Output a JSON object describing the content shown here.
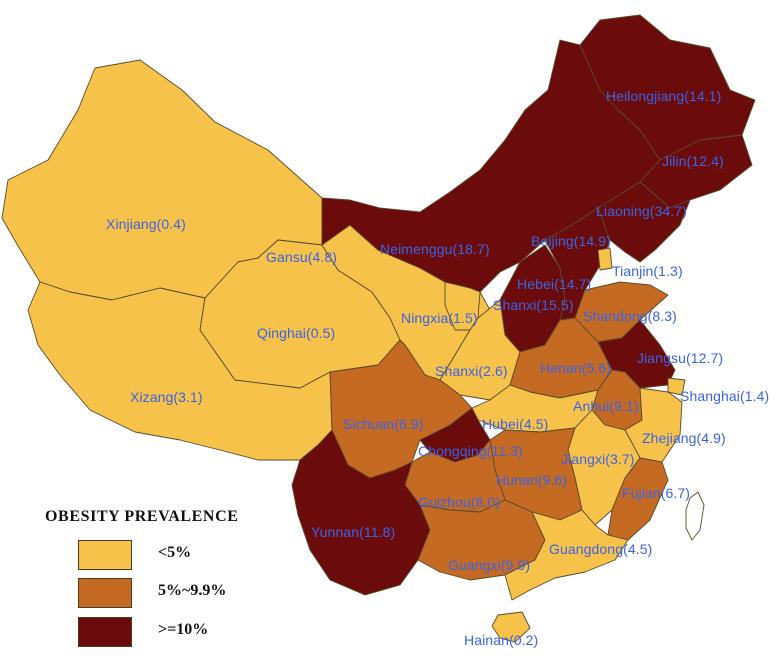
{
  "colors": {
    "low": "#f6c24a",
    "mid": "#c46a22",
    "high": "#6b0b0b",
    "label": "#3b63e6",
    "border": "#5a4a2a"
  },
  "legend": {
    "title": "OBESITY PREVALENCE",
    "items": [
      {
        "label": "<5%",
        "category": "low"
      },
      {
        "label": "5%~9.9%",
        "category": "mid"
      },
      {
        "label": ">=10%",
        "category": "high"
      }
    ]
  },
  "provinces": [
    {
      "id": "heilongjiang",
      "label": "Heilongjiang(14.1)",
      "category": "high"
    },
    {
      "id": "jilin",
      "label": "Jilin(12.4)",
      "category": "high"
    },
    {
      "id": "liaoning",
      "label": "Liaoning(34.7)",
      "category": "high"
    },
    {
      "id": "xinjiang",
      "label": "Xinjiang(0.4)",
      "category": "low"
    },
    {
      "id": "gansu",
      "label": "Gansu(4.8)",
      "category": "low"
    },
    {
      "id": "neimenggu",
      "label": "Neimenggu(18.7)",
      "category": "high"
    },
    {
      "id": "beijing",
      "label": "Beijing(14.9)",
      "category": "high"
    },
    {
      "id": "hebei",
      "label": "Hebei(14.7)",
      "category": "high"
    },
    {
      "id": "tianjin",
      "label": "Tianjin(1.3)",
      "category": "low"
    },
    {
      "id": "shanxi-n",
      "label": "Shanxi(15.5)",
      "category": "high"
    },
    {
      "id": "shandong",
      "label": "Shandong(8.3)",
      "category": "mid"
    },
    {
      "id": "qinghai",
      "label": "Qinghai(0.5)",
      "category": "low"
    },
    {
      "id": "ningxia",
      "label": "Ningxia(1.5)",
      "category": "low"
    },
    {
      "id": "henan",
      "label": "Henan(5.6)",
      "category": "mid"
    },
    {
      "id": "jiangsu",
      "label": "Jiangsu(12.7)",
      "category": "high"
    },
    {
      "id": "shanxi-s",
      "label": "Shanxi(2.6)",
      "category": "low"
    },
    {
      "id": "xizang",
      "label": "Xizang(3.1)",
      "category": "low"
    },
    {
      "id": "shanghai",
      "label": "Shanghai(1.4)",
      "category": "low"
    },
    {
      "id": "anhui",
      "label": "Anhui(9.1)",
      "category": "mid"
    },
    {
      "id": "sichuan",
      "label": "Sichuan(6.9)",
      "category": "mid"
    },
    {
      "id": "hubei",
      "label": "Hubei(4.5)",
      "category": "low"
    },
    {
      "id": "zhejiang",
      "label": "Zhejiang(4.9)",
      "category": "low"
    },
    {
      "id": "chongqing",
      "label": "Chongqing(11.3)",
      "category": "high"
    },
    {
      "id": "jiangxi",
      "label": "Jiangxi(3.7)",
      "category": "low"
    },
    {
      "id": "hunan",
      "label": "Hunan(9.6)",
      "category": "mid"
    },
    {
      "id": "guizhou",
      "label": "Guizhou(8.0)",
      "category": "mid"
    },
    {
      "id": "fujian",
      "label": "Fujian(6.7)",
      "category": "mid"
    },
    {
      "id": "yunnan",
      "label": "Yunnan(11.8)",
      "category": "high"
    },
    {
      "id": "guangxi",
      "label": "Guangxi(9.9)",
      "category": "mid"
    },
    {
      "id": "guangdong",
      "label": "Guangdong(4.5)",
      "category": "low"
    },
    {
      "id": "hainan",
      "label": "Hainan(0.2)",
      "category": "low"
    }
  ]
}
